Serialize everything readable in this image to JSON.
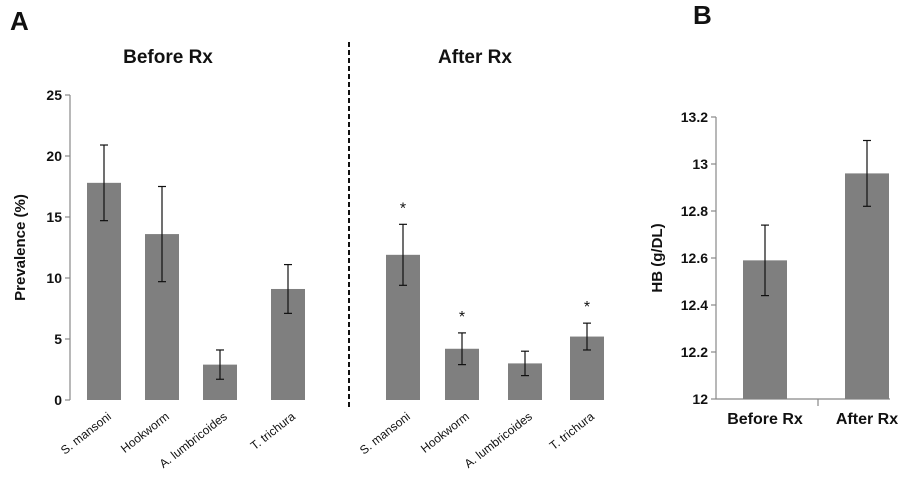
{
  "figure": {
    "panel_a_letter": "A",
    "panel_b_letter": "B"
  },
  "chart_data": [
    {
      "id": "A",
      "type": "bar",
      "ylabel": "Prevalence (%)",
      "ylim": [
        0,
        25
      ],
      "yticks": [
        0,
        5,
        10,
        15,
        20,
        25
      ],
      "significance_marker": "*",
      "groups": [
        {
          "title": "Before Rx",
          "categories": [
            "S. mansoni",
            "Hookworm",
            "A. lumbricoides",
            "T. trichura"
          ],
          "values": [
            17.8,
            13.6,
            2.9,
            9.1
          ],
          "errors": [
            3.1,
            3.9,
            1.2,
            2.0
          ],
          "significant": [
            false,
            false,
            false,
            false
          ]
        },
        {
          "title": "After Rx",
          "categories": [
            "S. mansoni",
            "Hookworm",
            "A. lumbricoides",
            "T. trichura"
          ],
          "values": [
            11.9,
            4.2,
            3.0,
            5.2
          ],
          "errors": [
            2.5,
            1.3,
            1.0,
            1.1
          ],
          "significant": [
            true,
            true,
            false,
            true
          ]
        }
      ]
    },
    {
      "id": "B",
      "type": "bar",
      "ylabel": "HB (g/DL)",
      "ylim": [
        12,
        13.2
      ],
      "yticks": [
        "12",
        "12.2",
        "12.4",
        "12.6",
        "12.8",
        "13",
        "13.2"
      ],
      "categories": [
        "Before Rx",
        "After Rx"
      ],
      "values": [
        12.59,
        12.96
      ],
      "errors": [
        0.15,
        0.14
      ]
    }
  ]
}
